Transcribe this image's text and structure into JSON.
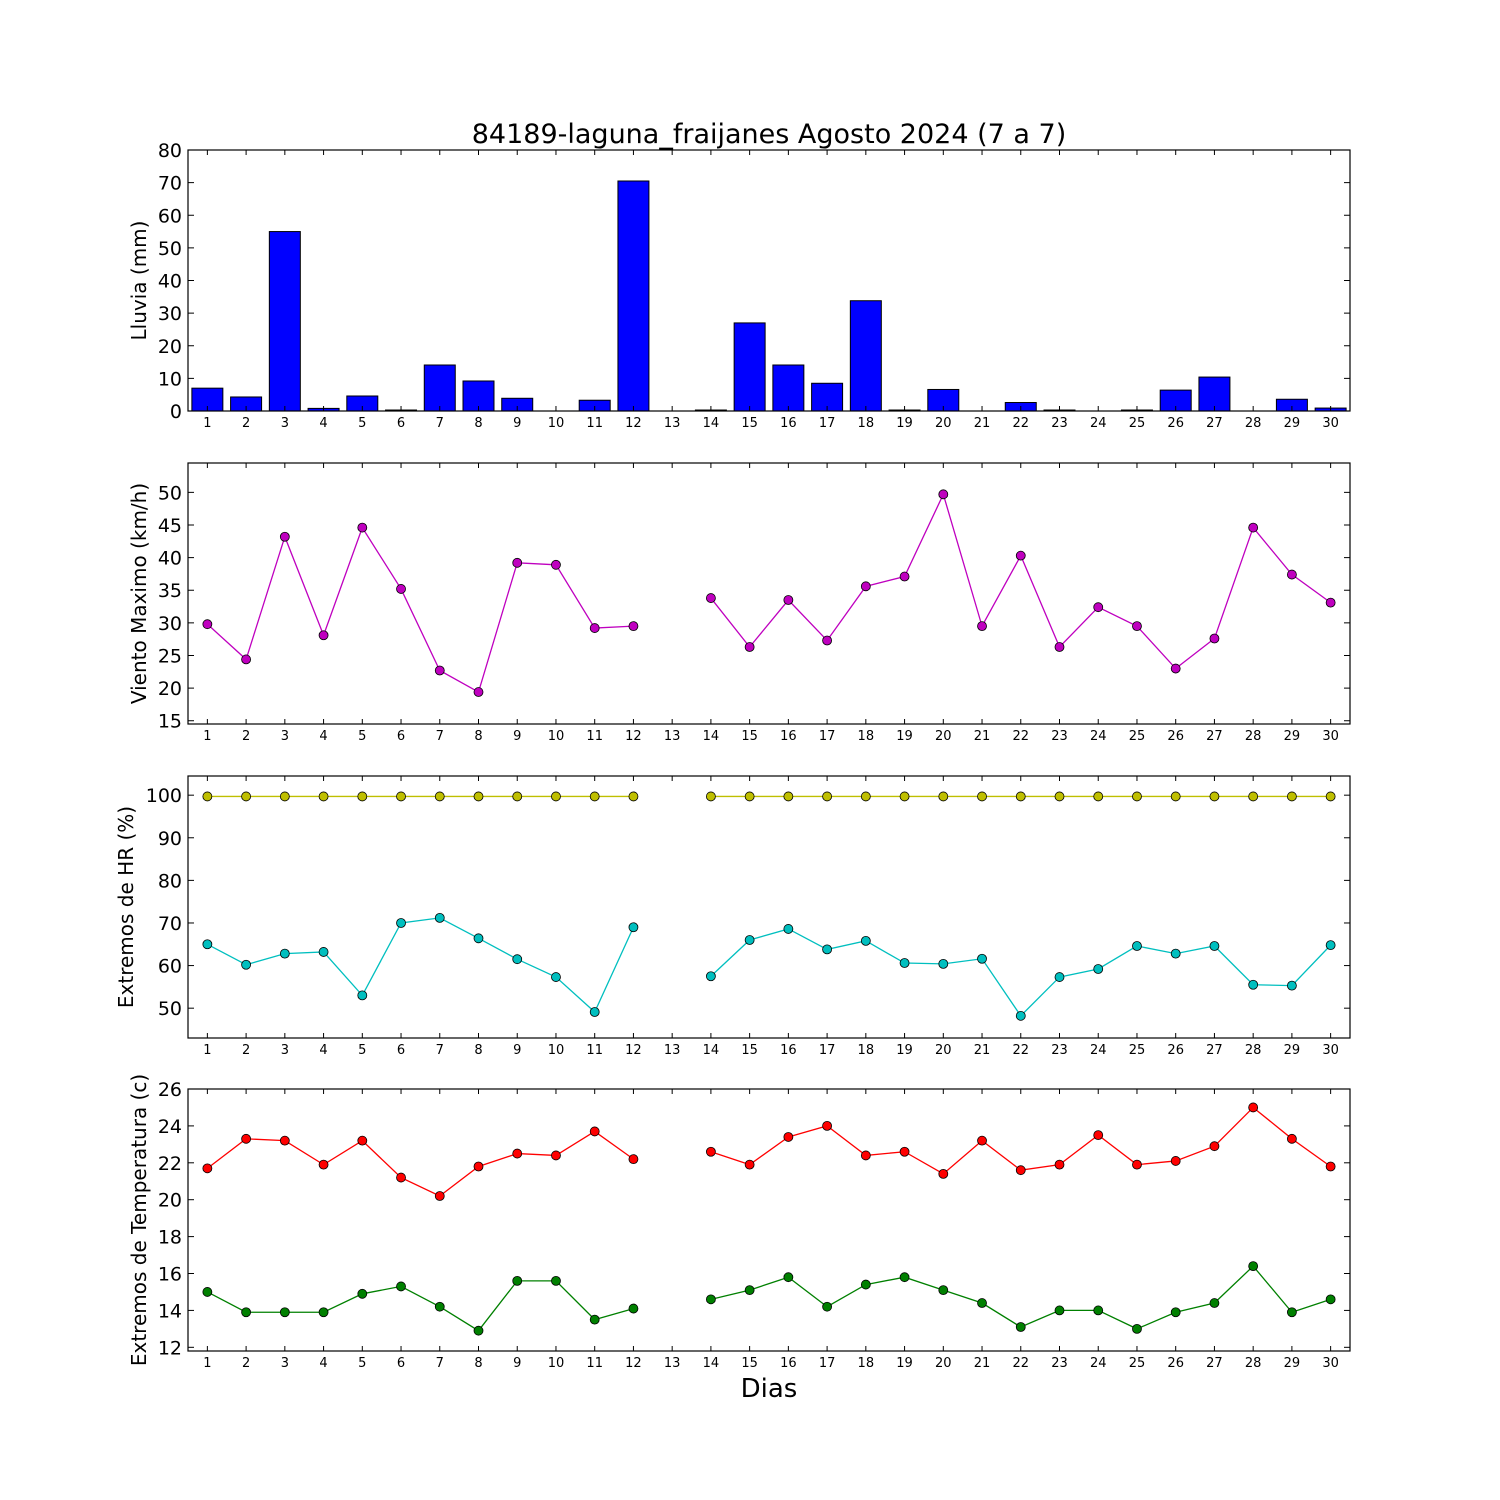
{
  "figure": {
    "title": "84189-laguna_fraijanes Agosto 2024  (7 a 7)",
    "xlabel": "Dias"
  },
  "chart_data": [
    {
      "type": "bar",
      "ylabel": "Lluvia (mm)",
      "ylim": [
        0,
        80
      ],
      "yticks": [
        0,
        10,
        20,
        30,
        40,
        50,
        60,
        70,
        80
      ],
      "x": [
        1,
        2,
        3,
        4,
        5,
        6,
        7,
        8,
        9,
        10,
        11,
        12,
        13,
        14,
        15,
        16,
        17,
        18,
        19,
        20,
        21,
        22,
        23,
        24,
        25,
        26,
        27,
        28,
        29,
        30
      ],
      "series": [
        {
          "color": "#0000ff",
          "values": [
            7.0,
            4.3,
            55.0,
            0.8,
            4.6,
            0.3,
            14.1,
            9.2,
            3.9,
            0.0,
            3.3,
            70.5,
            0.0,
            0.3,
            27.0,
            14.1,
            8.5,
            33.8,
            0.3,
            6.6,
            0.0,
            2.6,
            0.3,
            0.0,
            0.3,
            6.4,
            10.4,
            0.0,
            3.6,
            0.9
          ]
        }
      ]
    },
    {
      "type": "line",
      "ylabel": "Viento Maximo (km/h)",
      "ylim": [
        14.5,
        54.5
      ],
      "yticks": [
        15,
        20,
        25,
        30,
        35,
        40,
        45,
        50
      ],
      "x": [
        1,
        2,
        3,
        4,
        5,
        6,
        7,
        8,
        9,
        10,
        11,
        12,
        13,
        14,
        15,
        16,
        17,
        18,
        19,
        20,
        21,
        22,
        23,
        24,
        25,
        26,
        27,
        28,
        29,
        30
      ],
      "series": [
        {
          "color": "#bf00bf",
          "values": [
            29.8,
            24.4,
            43.2,
            28.1,
            44.6,
            35.2,
            22.7,
            19.4,
            39.2,
            38.9,
            29.2,
            29.5,
            null,
            33.8,
            26.3,
            33.5,
            27.3,
            35.6,
            37.1,
            49.7,
            29.5,
            40.3,
            26.3,
            32.4,
            29.5,
            23.0,
            27.6,
            44.6,
            37.4,
            33.1
          ]
        }
      ]
    },
    {
      "type": "line",
      "ylabel": "Extremos de HR (%)",
      "ylim": [
        43,
        104.5
      ],
      "yticks": [
        50,
        60,
        70,
        80,
        90,
        100
      ],
      "x": [
        1,
        2,
        3,
        4,
        5,
        6,
        7,
        8,
        9,
        10,
        11,
        12,
        13,
        14,
        15,
        16,
        17,
        18,
        19,
        20,
        21,
        22,
        23,
        24,
        25,
        26,
        27,
        28,
        29,
        30
      ],
      "series": [
        {
          "color": "#bfbf00",
          "values": [
            99.7,
            99.7,
            99.7,
            99.7,
            99.7,
            99.7,
            99.7,
            99.7,
            99.7,
            99.7,
            99.7,
            99.7,
            null,
            99.7,
            99.7,
            99.7,
            99.7,
            99.7,
            99.7,
            99.7,
            99.7,
            99.7,
            99.7,
            99.7,
            99.7,
            99.7,
            99.7,
            99.7,
            99.7,
            99.7
          ]
        },
        {
          "color": "#00bfbf",
          "values": [
            65.0,
            60.2,
            62.8,
            63.2,
            53.0,
            70.0,
            71.2,
            66.4,
            61.5,
            57.3,
            49.1,
            69.0,
            null,
            57.5,
            66.0,
            68.6,
            63.8,
            65.8,
            60.6,
            60.4,
            61.6,
            48.2,
            57.3,
            59.2,
            64.6,
            62.8,
            64.6,
            55.5,
            55.3,
            64.8
          ]
        }
      ]
    },
    {
      "type": "line",
      "ylabel": "Extremos de Temperatura (c)",
      "ylim": [
        11.8,
        26
      ],
      "yticks": [
        12,
        14,
        16,
        18,
        20,
        22,
        24,
        26
      ],
      "x": [
        1,
        2,
        3,
        4,
        5,
        6,
        7,
        8,
        9,
        10,
        11,
        12,
        13,
        14,
        15,
        16,
        17,
        18,
        19,
        20,
        21,
        22,
        23,
        24,
        25,
        26,
        27,
        28,
        29,
        30
      ],
      "series": [
        {
          "color": "#ff0000",
          "values": [
            21.7,
            23.3,
            23.2,
            21.9,
            23.2,
            21.2,
            20.2,
            21.8,
            22.5,
            22.4,
            23.7,
            22.2,
            null,
            22.6,
            21.9,
            23.4,
            24.0,
            22.4,
            22.6,
            21.4,
            23.2,
            21.6,
            21.9,
            23.5,
            21.9,
            22.1,
            22.9,
            25.0,
            23.3,
            21.8
          ]
        },
        {
          "color": "#008000",
          "values": [
            15.0,
            13.9,
            13.9,
            13.9,
            14.9,
            15.3,
            14.2,
            12.9,
            15.6,
            15.6,
            13.5,
            14.1,
            null,
            14.6,
            15.1,
            15.8,
            14.2,
            15.4,
            15.8,
            15.1,
            14.4,
            13.1,
            14.0,
            14.0,
            13.0,
            13.9,
            14.4,
            16.4,
            13.9,
            14.6
          ]
        }
      ]
    }
  ]
}
